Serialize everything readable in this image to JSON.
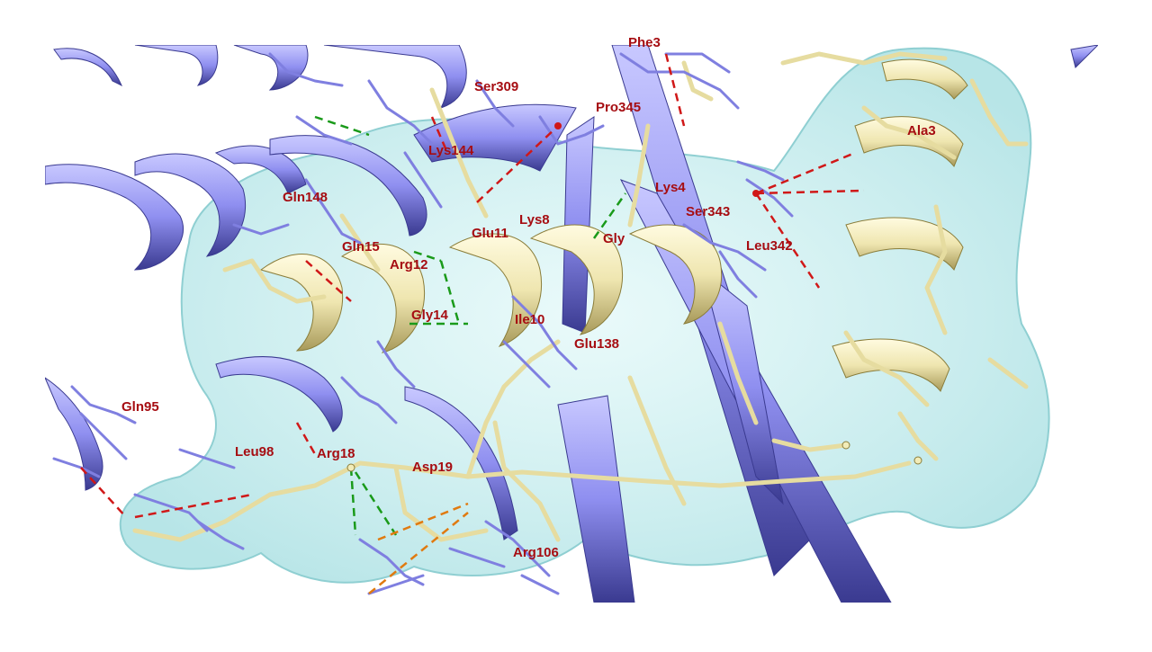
{
  "scene": {
    "colors": {
      "background": "#ffffff",
      "label": "#a60d12",
      "protein_ribbon": "#8f8ff0",
      "protein_sticks": "#8a8ae8",
      "peptide": "#f2ecb8",
      "peptide_sticks": "#ebe2a8",
      "surface": "#b8ecee",
      "hbond": "#1a9a1a",
      "salt_bridge": "#d01818",
      "hydrophobic": "#e07a10"
    },
    "labels": {
      "phe": "Phe3",
      "ser309": "Ser309",
      "pro345": "Pro345",
      "lys144": "Lys144",
      "ala": "Ala3",
      "lys4": "Lys4",
      "gln148": "Gln148",
      "ser343": "Ser343",
      "lys8": "Lys8",
      "glu11": "Glu11",
      "gly": "Gly",
      "gln15": "Gln15",
      "leu342": "Leu342",
      "arg12": "Arg12",
      "gly14": "Gly14",
      "ile10": "Ile10",
      "glu138": "Glu138",
      "gln95": "Gln95",
      "leu98": "Leu98",
      "arg18": "Arg18",
      "asp19": "Asp19",
      "arg106": "Arg106"
    }
  }
}
